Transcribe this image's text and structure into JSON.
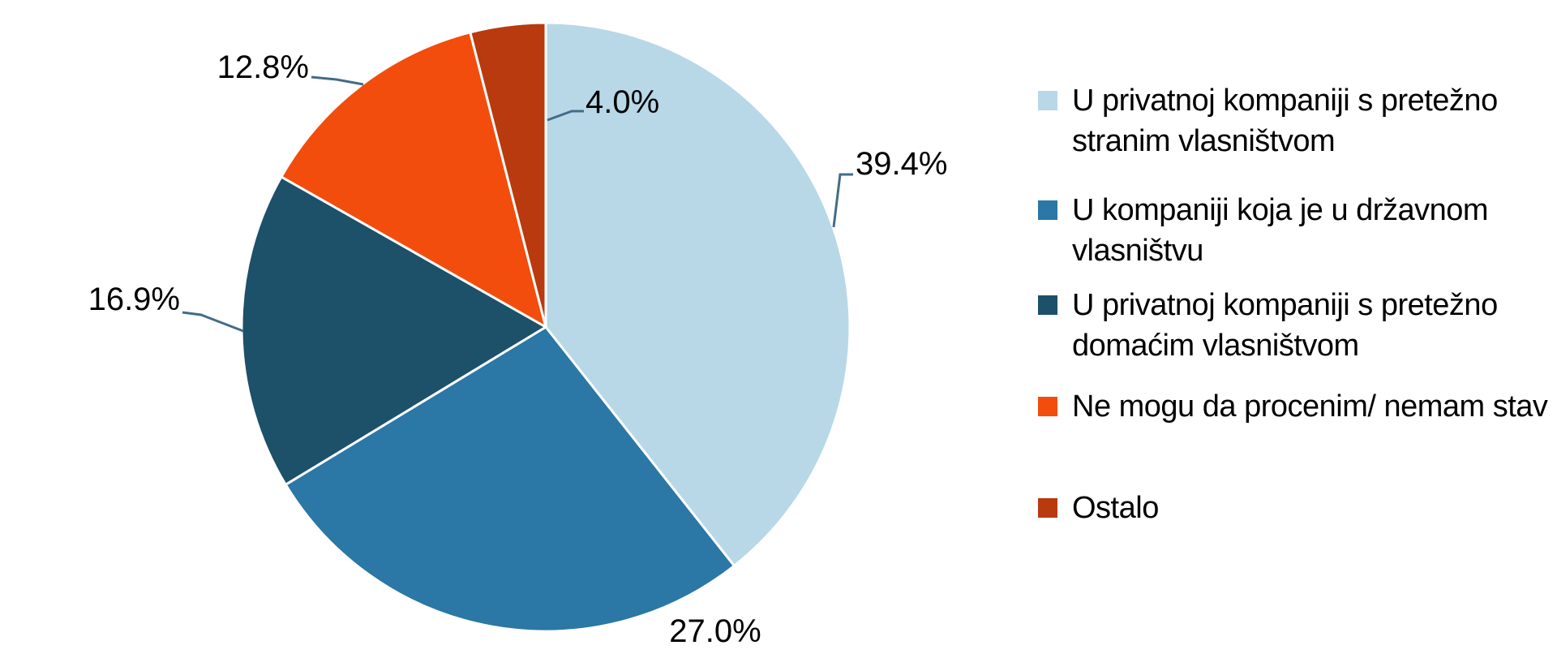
{
  "chart_data": {
    "type": "pie",
    "title": "",
    "series": [
      {
        "label": "U privatnoj kompaniji s pretežno stranim vlasništvom",
        "value": 39.4,
        "color": "#B8D8E8"
      },
      {
        "label": "U kompaniji koja je u državnom vlasništvu",
        "value": 27.0,
        "color": "#2B77A6"
      },
      {
        "label": "U privatnoj kompaniji s pretežno domaćim vlasništvom",
        "value": 16.9,
        "color": "#1D5069"
      },
      {
        "label": "Ne mogu da procenim/ nemam stav",
        "value": 12.8,
        "color": "#F24D0C"
      },
      {
        "label": "Ostalo",
        "value": 4.0,
        "color": "#B83A0E"
      }
    ],
    "data_labels": [
      "39.4%",
      "27.0%",
      "16.9%",
      "12.8%",
      "4.0%"
    ],
    "label_format": "0.0%",
    "start_angle_deg": 0,
    "direction": "clockwise",
    "legend_position": "right",
    "slice_border_color": "#FFFFFF",
    "leader_line_color": "#426C88",
    "text_color": "#000000",
    "background": "#FFFFFF"
  }
}
